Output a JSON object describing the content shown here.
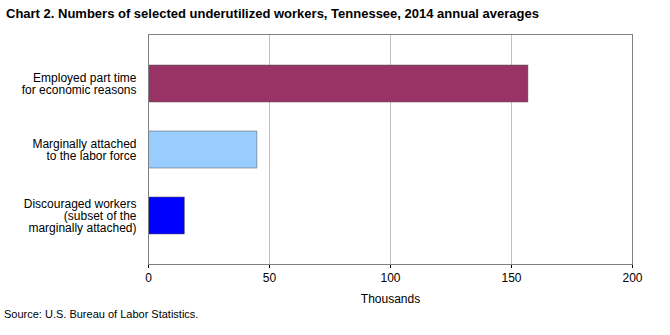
{
  "chart_data": {
    "type": "bar",
    "orientation": "horizontal",
    "title": "Chart 2. Numbers of selected underutilized workers, Tennessee, 2014 annual averages",
    "categories": [
      "Employed part time\nfor economic reasons",
      "Marginally attached\nto the labor force",
      "Discouraged workers\n(subset of the\nmarginally attached)"
    ],
    "values": [
      157,
      45,
      15
    ],
    "colors": [
      "#993366",
      "#99ccff",
      "#0000ff"
    ],
    "xlabel": "Thousands",
    "xlim": [
      0,
      200
    ],
    "xticks": [
      0,
      50,
      100,
      150,
      200
    ],
    "grid": true,
    "source": "Source: U.S. Bureau of Labor Statistics."
  }
}
